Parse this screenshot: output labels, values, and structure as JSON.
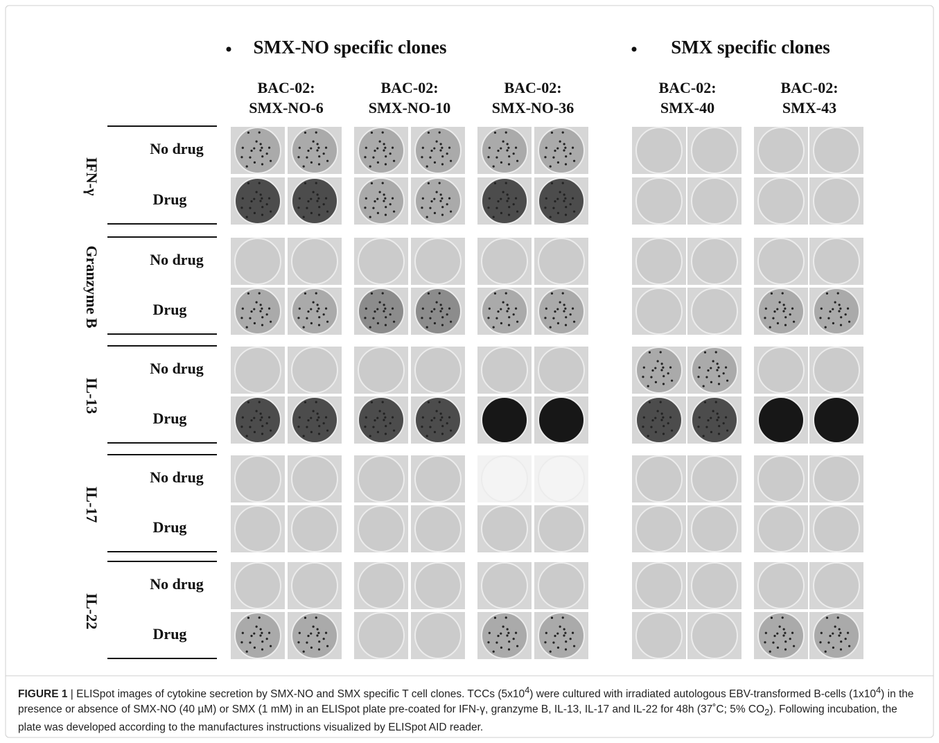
{
  "figure": {
    "groups": [
      {
        "heading": "SMX-NO specific clones",
        "clones": [
          [
            "BAC-02:",
            "SMX-NO-6"
          ],
          [
            "BAC-02:",
            "SMX-NO-10"
          ],
          [
            "BAC-02:",
            "SMX-NO-36"
          ]
        ]
      },
      {
        "heading": "SMX  specific clones",
        "clones": [
          [
            "BAC-02:",
            "SMX-40"
          ],
          [
            "BAC-02:",
            "SMX-43"
          ]
        ]
      }
    ],
    "cytokines": [
      "IFN-γ",
      "Granzyme  B",
      "IL-13",
      "IL-17",
      "IL-22"
    ],
    "conditions": [
      "No drug",
      "Drug"
    ]
  },
  "caption": {
    "label": "FIGURE 1",
    "parts": [
      {
        "text": " | ELISpot images of cytokine secretion by SMX-NO and SMX specific T cell clones. TCCs (5x10"
      },
      {
        "text": "4",
        "style": "sup"
      },
      {
        "text": ") were cultured with irradiated autologous EBV-transformed B-cells (1x10"
      },
      {
        "text": "4",
        "style": "sup"
      },
      {
        "text": ") in the presence or absence of SMX-NO (40 µM) or SMX (1 mM) in an ELISpot plate pre-coated for IFN-γ, granzyme B, IL-13, IL-17 and IL-22 for 48h (37˚C; 5% CO"
      },
      {
        "text": "2",
        "style": "sub"
      },
      {
        "text": "). Following incubation, the plate was developed according to the manufactures instructions visualized by ELISpot AID reader."
      }
    ]
  }
}
